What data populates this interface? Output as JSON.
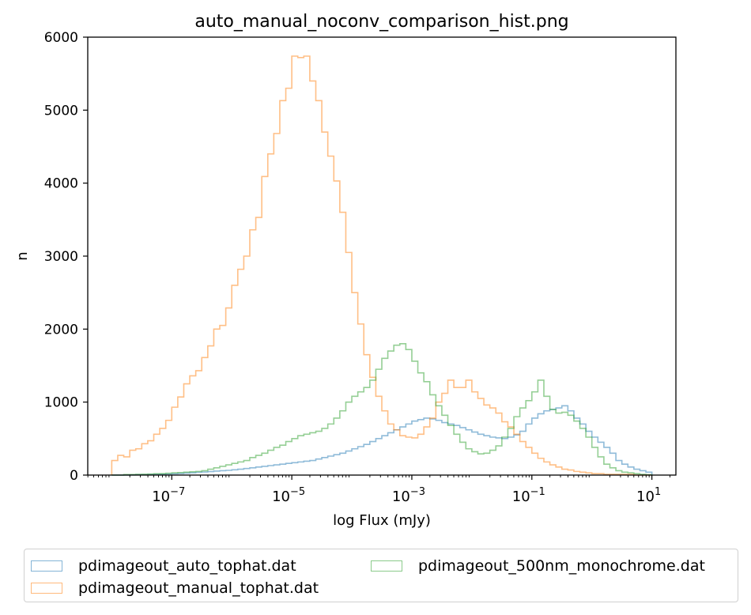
{
  "chart_data": {
    "type": "bar",
    "title": "auto_manual_noconv_comparison_hist.png",
    "xlabel": "log Flux (mJy)",
    "ylabel": "n",
    "xscale": "log",
    "xlim_log10": [
      -8.4,
      1.4
    ],
    "ylim": [
      0,
      6000
    ],
    "bin_edges_log10_range": [
      -8.0,
      1.0
    ],
    "bin_count": 90,
    "histtype": "step",
    "alpha": 0.5,
    "grid": false,
    "legend_placement": "below, 2 columns",
    "yticks": [
      {
        "value": 0,
        "label": "0"
      },
      {
        "value": 1000,
        "label": "1000"
      },
      {
        "value": 2000,
        "label": "2000"
      },
      {
        "value": 3000,
        "label": "3000"
      },
      {
        "value": 4000,
        "label": "4000"
      },
      {
        "value": 5000,
        "label": "5000"
      },
      {
        "value": 6000,
        "label": "6000"
      }
    ],
    "xticks": [
      {
        "value": -7,
        "base": "10",
        "exp": "−7"
      },
      {
        "value": -5,
        "base": "10",
        "exp": "−5"
      },
      {
        "value": -3,
        "base": "10",
        "exp": "−3"
      },
      {
        "value": -1,
        "base": "10",
        "exp": "−1"
      },
      {
        "value": 1,
        "base": "10",
        "exp": "1"
      }
    ],
    "series": [
      {
        "name": "pdimageout_auto_tophat.dat",
        "color": "#1f77b4",
        "values": [
          0,
          0,
          0,
          2,
          5,
          5,
          8,
          10,
          12,
          15,
          18,
          22,
          28,
          32,
          38,
          42,
          48,
          55,
          60,
          65,
          72,
          80,
          90,
          100,
          110,
          120,
          130,
          140,
          150,
          160,
          170,
          180,
          190,
          200,
          220,
          240,
          260,
          280,
          300,
          330,
          360,
          390,
          420,
          460,
          500,
          540,
          580,
          620,
          660,
          700,
          740,
          760,
          780,
          770,
          750,
          720,
          700,
          680,
          650,
          620,
          590,
          560,
          540,
          520,
          510,
          500,
          520,
          550,
          600,
          700,
          780,
          840,
          880,
          900,
          920,
          950,
          880,
          780,
          700,
          600,
          520,
          450,
          380,
          300,
          200,
          150,
          110,
          80,
          60,
          40
        ]
      },
      {
        "name": "pdimageout_manual_tophat.dat",
        "color": "#ff7f0e",
        "values": [
          200,
          270,
          250,
          340,
          360,
          430,
          470,
          560,
          640,
          750,
          930,
          1070,
          1250,
          1360,
          1430,
          1610,
          1770,
          2000,
          2050,
          2290,
          2600,
          2820,
          3000,
          3360,
          3530,
          4090,
          4400,
          4680,
          5130,
          5300,
          5740,
          5720,
          5740,
          5400,
          5130,
          4700,
          4370,
          4030,
          3600,
          3050,
          2500,
          2070,
          1650,
          1340,
          1080,
          880,
          700,
          620,
          540,
          520,
          510,
          560,
          660,
          780,
          1000,
          1120,
          1300,
          1200,
          1200,
          1300,
          1140,
          1050,
          960,
          920,
          850,
          730,
          660,
          560,
          460,
          380,
          300,
          230,
          180,
          140,
          110,
          80,
          70,
          50,
          40,
          30,
          20,
          20,
          10,
          10,
          10,
          10,
          10,
          0,
          0,
          0
        ]
      },
      {
        "name": "pdimageout_500nm_monochrome.dat",
        "color": "#2ca02c",
        "values": [
          0,
          0,
          8,
          8,
          10,
          12,
          15,
          18,
          20,
          25,
          30,
          35,
          40,
          45,
          50,
          60,
          80,
          100,
          120,
          140,
          160,
          180,
          200,
          240,
          270,
          300,
          340,
          380,
          410,
          460,
          500,
          540,
          560,
          580,
          600,
          640,
          700,
          780,
          880,
          1000,
          1080,
          1140,
          1200,
          1300,
          1450,
          1600,
          1700,
          1780,
          1800,
          1720,
          1560,
          1400,
          1280,
          1100,
          950,
          820,
          680,
          560,
          450,
          360,
          320,
          290,
          300,
          340,
          400,
          520,
          640,
          800,
          920,
          1020,
          1140,
          1300,
          1080,
          900,
          850,
          860,
          820,
          740,
          640,
          520,
          380,
          250,
          150,
          100,
          60,
          40,
          30,
          20,
          10,
          5
        ]
      }
    ]
  }
}
